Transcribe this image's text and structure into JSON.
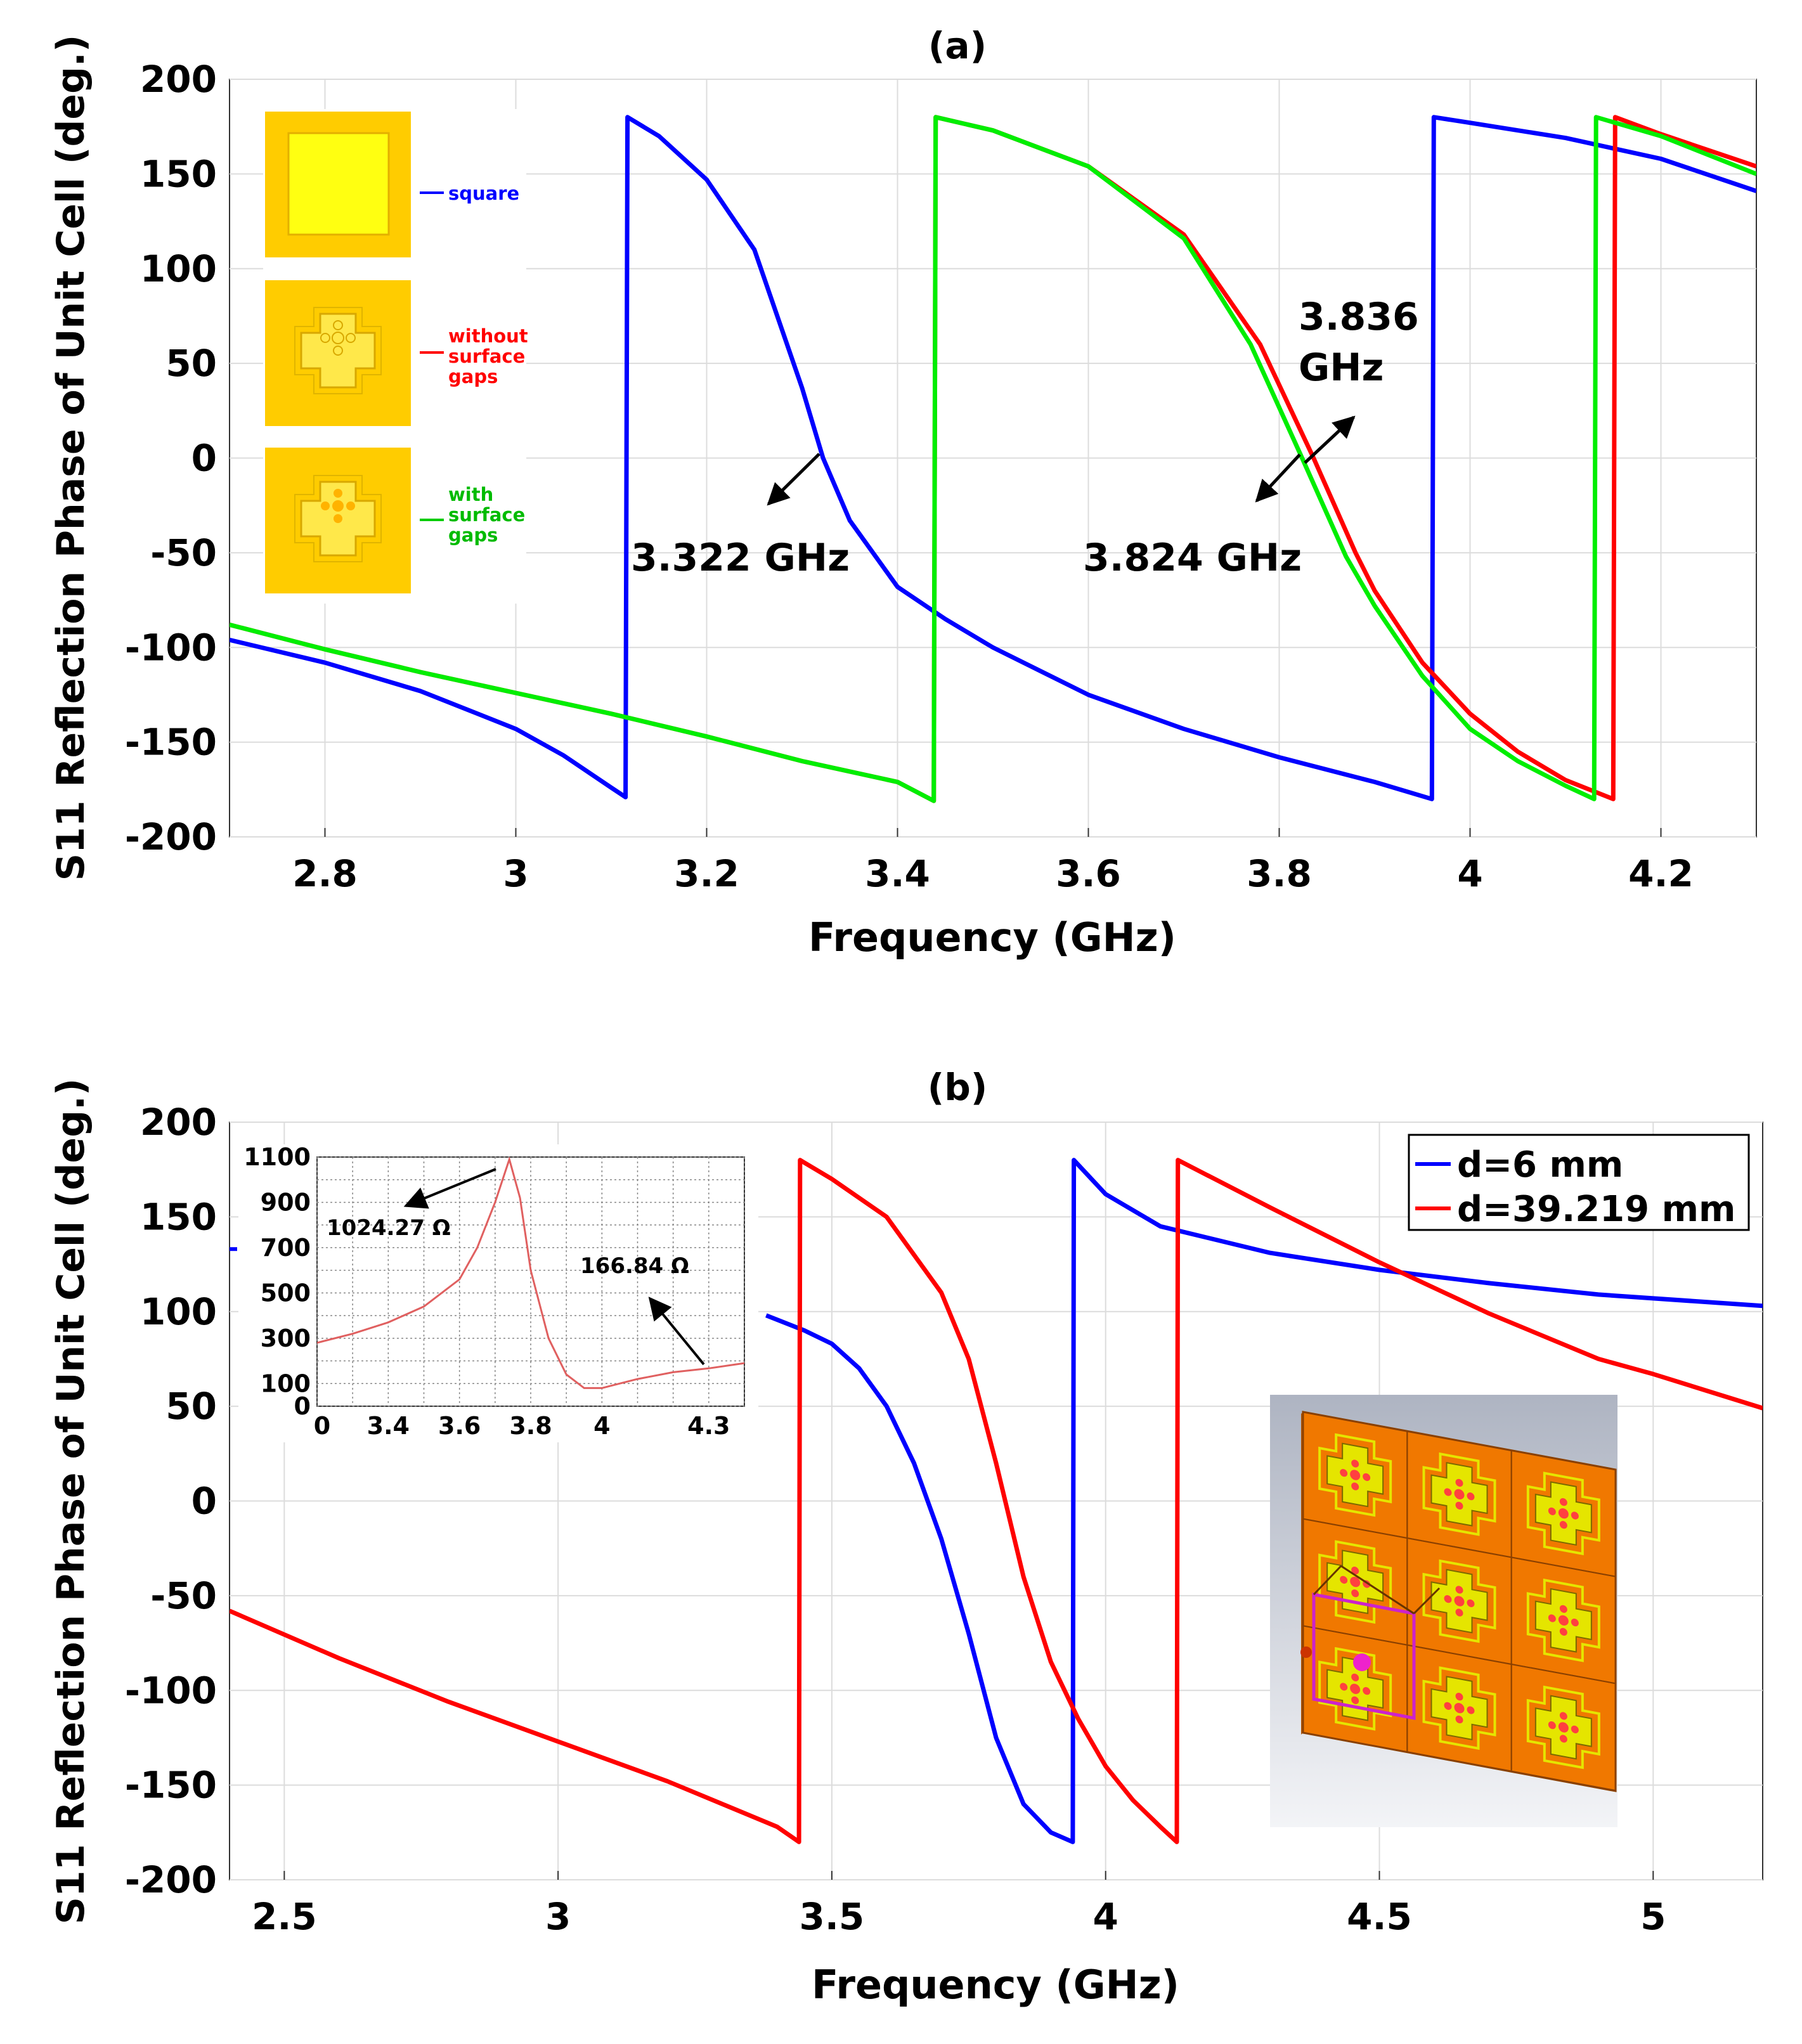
{
  "chart_data": [
    {
      "panel": "(a)",
      "type": "line",
      "title": "(a)",
      "xlabel": "Frequency (GHz)",
      "ylabel": "S11 Reflection Phase of Unit Cell (deg.)",
      "xlim": [
        2.7,
        4.3
      ],
      "ylim": [
        -200,
        200
      ],
      "xticks": [
        2.8,
        3,
        3.2,
        3.4,
        3.6,
        3.8,
        4,
        4.2
      ],
      "xtick_labels": [
        "2.8",
        "3",
        "3.2",
        "3.4",
        "3.6",
        "3.8",
        "4",
        "4.2"
      ],
      "yticks": [
        200,
        150,
        100,
        50,
        0,
        -50,
        -100,
        -150,
        -200
      ],
      "ytick_labels": [
        "200",
        "150",
        "100",
        "50",
        "0",
        "-50",
        "-100",
        "-150",
        "-200"
      ],
      "grid": true,
      "legend_placement": "top-left (inset images)",
      "series": [
        {
          "name": "square",
          "color": "#0000ff",
          "points": [
            [
              2.7,
              -96
            ],
            [
              2.8,
              -108
            ],
            [
              2.9,
              -123
            ],
            [
              3.0,
              -143
            ],
            [
              3.05,
              -157
            ],
            [
              3.1,
              -174
            ],
            [
              3.115,
              -179
            ],
            [
              3.117,
              180
            ],
            [
              3.15,
              170
            ],
            [
              3.2,
              147
            ],
            [
              3.25,
              110
            ],
            [
              3.3,
              37
            ],
            [
              3.322,
              0
            ],
            [
              3.35,
              -33
            ],
            [
              3.4,
              -68
            ],
            [
              3.45,
              -85
            ],
            [
              3.5,
              -100
            ],
            [
              3.6,
              -125
            ],
            [
              3.7,
              -143
            ],
            [
              3.8,
              -158
            ],
            [
              3.9,
              -171
            ],
            [
              3.96,
              -180
            ],
            [
              3.962,
              180
            ],
            [
              4.0,
              177
            ],
            [
              4.1,
              169
            ],
            [
              4.2,
              158
            ],
            [
              4.3,
              141
            ]
          ]
        },
        {
          "name": "without surface gaps",
          "color": "#ff0000",
          "points": [
            [
              2.7,
              -88
            ],
            [
              2.8,
              -101
            ],
            [
              2.9,
              -113
            ],
            [
              3.0,
              -124
            ],
            [
              3.1,
              -135
            ],
            [
              3.2,
              -147
            ],
            [
              3.3,
              -160
            ],
            [
              3.4,
              -171
            ],
            [
              3.438,
              -181
            ],
            [
              3.44,
              180
            ],
            [
              3.5,
              173
            ],
            [
              3.6,
              154
            ],
            [
              3.7,
              118
            ],
            [
              3.78,
              60
            ],
            [
              3.836,
              0
            ],
            [
              3.88,
              -50
            ],
            [
              3.9,
              -70
            ],
            [
              3.95,
              -108
            ],
            [
              4.0,
              -135
            ],
            [
              4.05,
              -155
            ],
            [
              4.1,
              -170
            ],
            [
              4.15,
              -180
            ],
            [
              4.152,
              180
            ],
            [
              4.2,
              171
            ],
            [
              4.3,
              154
            ]
          ]
        },
        {
          "name": "with surface gaps",
          "color": "#00ee00",
          "points": [
            [
              2.7,
              -88
            ],
            [
              2.8,
              -101
            ],
            [
              2.9,
              -113
            ],
            [
              3.0,
              -124
            ],
            [
              3.1,
              -135
            ],
            [
              3.2,
              -147
            ],
            [
              3.3,
              -160
            ],
            [
              3.4,
              -171
            ],
            [
              3.438,
              -181
            ],
            [
              3.44,
              180
            ],
            [
              3.5,
              173
            ],
            [
              3.6,
              154
            ],
            [
              3.7,
              116
            ],
            [
              3.77,
              60
            ],
            [
              3.824,
              0
            ],
            [
              3.87,
              -52
            ],
            [
              3.9,
              -78
            ],
            [
              3.95,
              -115
            ],
            [
              4.0,
              -143
            ],
            [
              4.05,
              -160
            ],
            [
              4.1,
              -173
            ],
            [
              4.13,
              -180
            ],
            [
              4.132,
              180
            ],
            [
              4.2,
              170
            ],
            [
              4.3,
              150
            ]
          ]
        }
      ],
      "annotations": [
        "3.322 GHz",
        "3.836 GHz",
        "3.824 GHz"
      ],
      "inset_legend": {
        "square_label": "square",
        "without_label": "without surface gaps",
        "with_label": "with surface gaps"
      }
    },
    {
      "panel": "(b)",
      "type": "line",
      "title": "(b)",
      "xlabel": "Frequency (GHz)",
      "ylabel": "S11 Reflection Phase of Unit Cell (deg.)",
      "xlim": [
        2.4,
        5.2
      ],
      "ylim": [
        -200,
        200
      ],
      "xticks": [
        2.5,
        3,
        3.5,
        4,
        4.5,
        5
      ],
      "xtick_labels": [
        "2.5",
        "3",
        "3.5",
        "4",
        "4.5",
        "5"
      ],
      "yticks": [
        200,
        150,
        100,
        50,
        0,
        -50,
        -100,
        -150,
        -200
      ],
      "ytick_labels": [
        "200",
        "150",
        "100",
        "50",
        "0",
        "-50",
        "-100",
        "-150",
        "-200"
      ],
      "grid": true,
      "legend_placement": "top-right",
      "series": [
        {
          "name": "d=6 mm",
          "color": "#0000ff",
          "points": [
            [
              3.38,
              98
            ],
            [
              3.45,
              90
            ],
            [
              3.5,
              83
            ],
            [
              3.55,
              70
            ],
            [
              3.6,
              50
            ],
            [
              3.65,
              20
            ],
            [
              3.7,
              -20
            ],
            [
              3.75,
              -70
            ],
            [
              3.8,
              -125
            ],
            [
              3.85,
              -160
            ],
            [
              3.9,
              -175
            ],
            [
              3.94,
              -180
            ],
            [
              3.942,
              180
            ],
            [
              4.0,
              162
            ],
            [
              4.1,
              145
            ],
            [
              4.3,
              131
            ],
            [
              4.5,
              122
            ],
            [
              4.7,
              115
            ],
            [
              4.9,
              109
            ],
            [
              5.2,
              103
            ]
          ],
          "stray_point": [
            2.4,
            133
          ]
        },
        {
          "name": "d=39.219 mm",
          "color": "#ff0000",
          "points": [
            [
              2.4,
              -58
            ],
            [
              2.6,
              -83
            ],
            [
              2.8,
              -106
            ],
            [
              3.0,
              -127
            ],
            [
              3.2,
              -148
            ],
            [
              3.3,
              -160
            ],
            [
              3.4,
              -172
            ],
            [
              3.44,
              -180
            ],
            [
              3.442,
              180
            ],
            [
              3.5,
              170
            ],
            [
              3.6,
              150
            ],
            [
              3.7,
              110
            ],
            [
              3.75,
              75
            ],
            [
              3.8,
              20
            ],
            [
              3.85,
              -40
            ],
            [
              3.9,
              -85
            ],
            [
              3.95,
              -115
            ],
            [
              4.0,
              -140
            ],
            [
              4.05,
              -158
            ],
            [
              4.1,
              -172
            ],
            [
              4.13,
              -180
            ],
            [
              4.132,
              180
            ],
            [
              4.3,
              155
            ],
            [
              4.5,
              126
            ],
            [
              4.7,
              99
            ],
            [
              4.9,
              75
            ],
            [
              5.0,
              67
            ],
            [
              5.2,
              49
            ]
          ]
        }
      ],
      "legend": [
        "d=6 mm",
        "d=39.219 mm"
      ],
      "inset_chart": {
        "type": "line",
        "color": "#e06060",
        "ylim": [
          0,
          1100
        ],
        "yticks": [
          1100,
          900,
          700,
          500,
          300,
          100,
          0
        ],
        "ytick_labels": [
          "1100",
          "900",
          "700",
          "500",
          "300",
          "100",
          "0"
        ],
        "xticks": [
          3.4,
          3.6,
          3.8,
          4,
          4.3
        ],
        "xtick_labels": [
          "3.4",
          "3.6",
          "3.8",
          "4",
          "4.3"
        ],
        "origin_label": "0",
        "points": [
          [
            3.2,
            280
          ],
          [
            3.3,
            320
          ],
          [
            3.4,
            370
          ],
          [
            3.5,
            440
          ],
          [
            3.6,
            560
          ],
          [
            3.65,
            700
          ],
          [
            3.7,
            900
          ],
          [
            3.74,
            1090
          ],
          [
            3.77,
            920
          ],
          [
            3.8,
            600
          ],
          [
            3.85,
            300
          ],
          [
            3.9,
            140
          ],
          [
            3.95,
            80
          ],
          [
            4.0,
            80
          ],
          [
            4.1,
            120
          ],
          [
            4.2,
            150
          ],
          [
            4.3,
            167
          ],
          [
            4.4,
            190
          ]
        ],
        "annotations": [
          "1024.27 Ω",
          "166.84 Ω"
        ]
      }
    }
  ]
}
